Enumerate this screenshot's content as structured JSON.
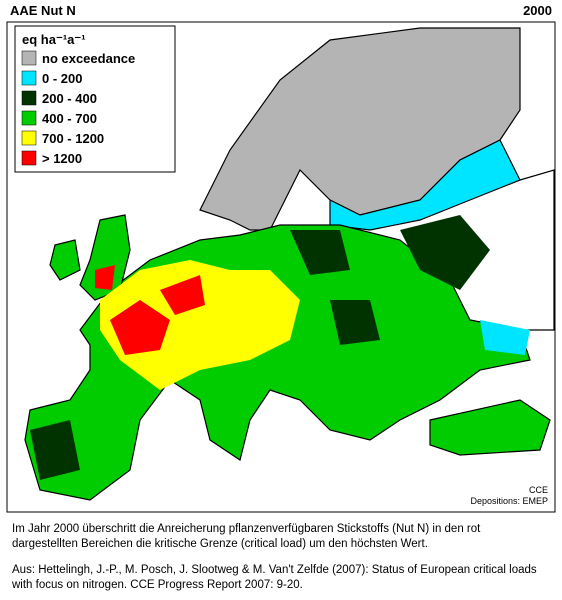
{
  "header": {
    "title": "AAE Nut N",
    "year": "2000"
  },
  "legend": {
    "title": "eq ha⁻¹a⁻¹",
    "items": [
      {
        "label": "no exceedance",
        "color": "#b4b4b4"
      },
      {
        "label": "0 - 200",
        "color": "#00e5ff"
      },
      {
        "label": "200 - 400",
        "color": "#003300"
      },
      {
        "label": "400 - 700",
        "color": "#00cc00"
      },
      {
        "label": "700 - 1200",
        "color": "#ffff00"
      },
      {
        "label": "> 1200",
        "color": "#ff0000"
      }
    ]
  },
  "credits": {
    "source": "CCE",
    "depositions": "Depositions: EMEP"
  },
  "caption": {
    "text": "Im Jahr 2000 überschritt die Anreicherung pflanzenverfügbaren Stickstoffs (Nut N) in den rot dargestellten Bereichen die kritische Grenze (critical load) um den höchsten Wert.",
    "citation": "Aus: Hettelingh, J.-P., M. Posch, J. Slootweg & M. Van't Zelfde (2007): Status of European critical loads with focus on nitrogen. CCE Progress Report 2007: 9-20."
  }
}
